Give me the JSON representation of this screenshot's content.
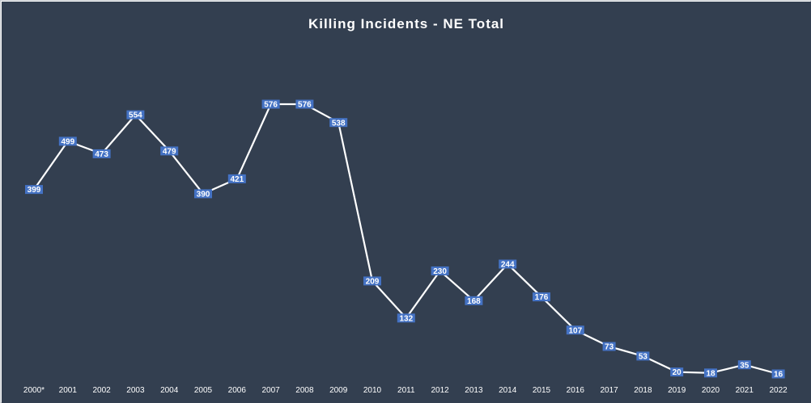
{
  "colors": {
    "background": "#333f50",
    "line": "#ffffff",
    "label_box": "#4472c4",
    "text": "#ffffff"
  },
  "chart_data": {
    "type": "line",
    "title": "Killing Incidents - NE Total",
    "xlabel": "",
    "ylabel": "",
    "grid": false,
    "legend": "none",
    "ylim": [
      0,
      620
    ],
    "categories": [
      "2000*",
      "2001",
      "2002",
      "2003",
      "2004",
      "2005",
      "2006",
      "2007",
      "2008",
      "2009",
      "2010",
      "2011",
      "2012",
      "2013",
      "2014",
      "2015",
      "2016",
      "2017",
      "2018",
      "2019",
      "2020",
      "2021",
      "2022"
    ],
    "series": [
      {
        "values": [
          399,
          499,
          473,
          554,
          479,
          390,
          421,
          576,
          576,
          538,
          209,
          132,
          230,
          168,
          244,
          176,
          107,
          73,
          53,
          20,
          18,
          35,
          16
        ]
      }
    ]
  }
}
